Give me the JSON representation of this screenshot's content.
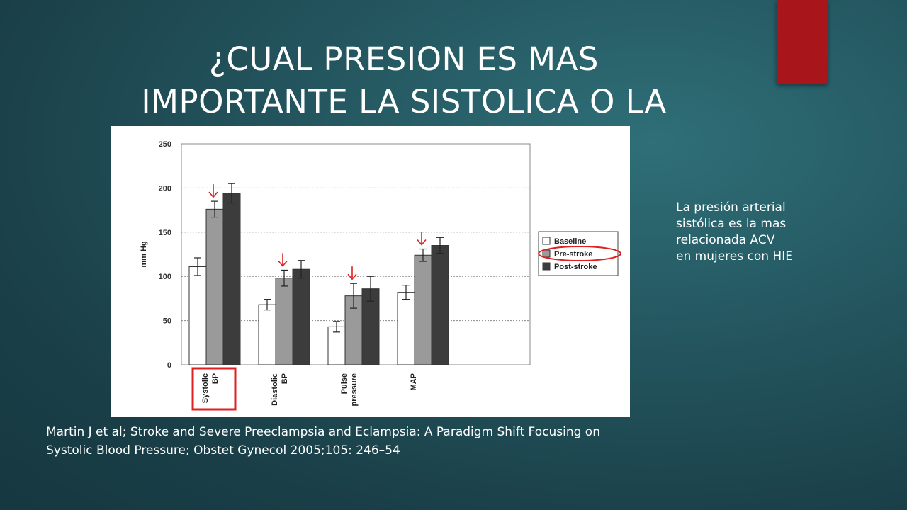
{
  "slide": {
    "title_line1": "¿CUAL PRESION ES MAS",
    "title_line2": "IMPORTANTE LA SISTOLICA O LA",
    "accent_color": "#a8151b",
    "side_note": [
      "La presión arterial",
      "sistólica es la mas",
      "relacionada  ACV",
      "en mujeres con HIE"
    ],
    "citation": [
      "Martin J et al; Stroke and Severe Preeclampsia and Eclampsia: A Paradigm Shift Focusing on",
      "Systolic Blood Pressure; Obstet Gynecol 2005;105:  246–54"
    ]
  },
  "chart_data": {
    "type": "bar",
    "ylabel": "mm Hg",
    "ylim": [
      0,
      250
    ],
    "yticks": [
      0,
      50,
      100,
      150,
      200,
      250
    ],
    "grid": true,
    "legend_position": "right",
    "categories": [
      [
        "Systolic",
        "BP"
      ],
      [
        "Diastolic",
        "BP"
      ],
      [
        "Pulse",
        "pressure"
      ],
      [
        "MAP"
      ]
    ],
    "series": [
      {
        "name": "Baseline",
        "color": "#ffffff",
        "values": [
          111,
          68,
          43,
          82
        ],
        "errors": [
          10,
          6,
          6,
          8
        ]
      },
      {
        "name": "Pre-stroke",
        "color": "#9a9a9a",
        "values": [
          176,
          98,
          78,
          124
        ],
        "errors": [
          9,
          9,
          14,
          7
        ]
      },
      {
        "name": "Post-stroke",
        "color": "#3c3c3c",
        "values": [
          194,
          108,
          86,
          135
        ],
        "errors": [
          11,
          10,
          14,
          9
        ]
      }
    ],
    "highlights": {
      "arrow_color": "#e02020",
      "arrow_series": "Pre-stroke",
      "boxed_category": 0,
      "circled_legend": "Pre-stroke"
    }
  }
}
